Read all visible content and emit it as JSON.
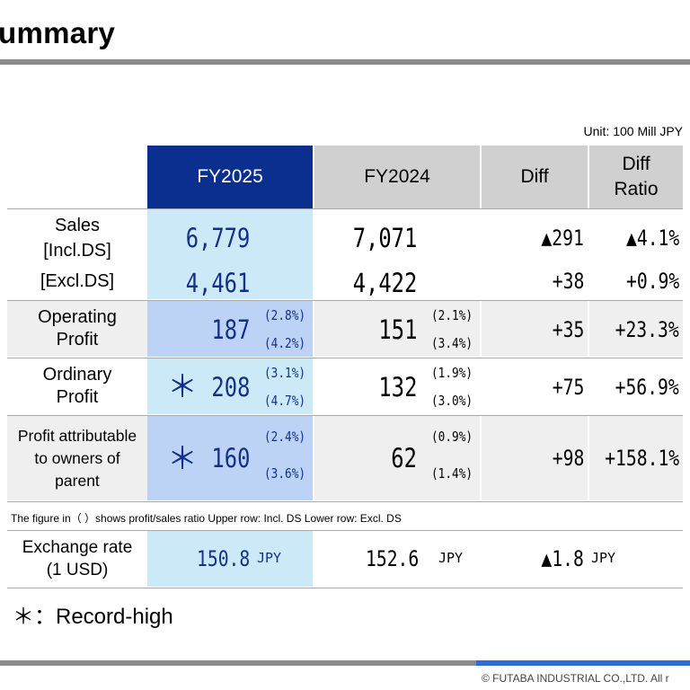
{
  "title": "ummary",
  "unit": "Unit: 100 Mill JPY",
  "headers": {
    "fy2025": "FY2025",
    "fy2024": "FY2024",
    "diff": "Diff",
    "diff_ratio": "Diff\nRatio"
  },
  "rows": {
    "sales": {
      "label": "Sales",
      "incl_label": "[Incl.DS]",
      "excl_label": "[Excl.DS]",
      "fy2025_incl": "6,779",
      "fy2025_excl": "4,461",
      "fy2024_incl": "7,071",
      "fy2024_excl": "4,422",
      "diff_incl": "▲291",
      "diff_excl": "+38",
      "ratio_incl": "▲4.1%",
      "ratio_excl": "+0.9%"
    },
    "operating": {
      "label": "Operating\nProfit",
      "fy2025": "187",
      "fy2025_pct_incl": "(2.8%)",
      "fy2025_pct_excl": "(4.2%)",
      "fy2024": "151",
      "fy2024_pct_incl": "(2.1%)",
      "fy2024_pct_excl": "(3.4%)",
      "diff": "+35",
      "ratio": "+23.3%"
    },
    "ordinary": {
      "label": "Ordinary\nProfit",
      "star": "＊",
      "fy2025": "208",
      "fy2025_pct_incl": "(3.1%)",
      "fy2025_pct_excl": "(4.7%)",
      "fy2024": "132",
      "fy2024_pct_incl": "(1.9%)",
      "fy2024_pct_excl": "(3.0%)",
      "diff": "+75",
      "ratio": "+56.9%"
    },
    "attributable": {
      "label": "Profit attributable\nto owners of\nparent",
      "star": "＊",
      "fy2025": "160",
      "fy2025_pct_incl": "(2.4%)",
      "fy2025_pct_excl": "(3.6%)",
      "fy2024": "62",
      "fy2024_pct_incl": "(0.9%)",
      "fy2024_pct_excl": "(1.4%)",
      "diff": "+98",
      "ratio": "+158.1%"
    }
  },
  "note": "The figure in（ ）shows profit/sales ratio  Upper row: Incl. DS    Lower row: Excl. DS",
  "exchange": {
    "label": "Exchange rate\n(1 USD)",
    "fy2025": "150.8",
    "fy2024": "152.6",
    "diff": "▲1.8",
    "unit": "JPY"
  },
  "record_high": "＊：Record-high",
  "copyright": "© FUTABA INDUSTRIAL CO.,LTD.   All r",
  "colors": {
    "fy2025_header": "#0a2f8f",
    "fy2025_cell": "#cce9f8",
    "fy2025_cell_alt": "#bcd3f5",
    "accent": "#2f6bd6"
  }
}
